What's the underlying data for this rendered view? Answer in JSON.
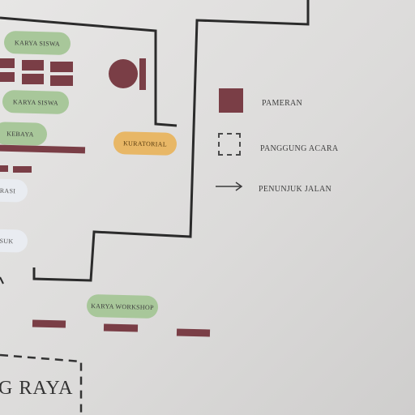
{
  "map": {
    "zones": {
      "karya_siswa_1": "KARYA SISWA",
      "karya_siswa_2": "KARYA SISWA",
      "kebaya": "KEBAYA",
      "kuratorial": "KURATORIAL",
      "registrasi_partial": "TRASI",
      "masuk_partial": "ASUK",
      "karya_workshop": "KARYA WORKSHOP"
    },
    "road_label": "G RAYA"
  },
  "legend": {
    "pameran": "PAMERAN",
    "panggung_acara": "PANGGUNG ACARA",
    "penunjuk_jalan": "PENUNJUK JALAN"
  },
  "colors": {
    "exhibit": "#7a3e46",
    "zone_green": "#a8c79a",
    "zone_orange": "#e8b766",
    "wall": "#2b2b2b"
  },
  "icons": {
    "arrow": "arrow-right-icon"
  }
}
